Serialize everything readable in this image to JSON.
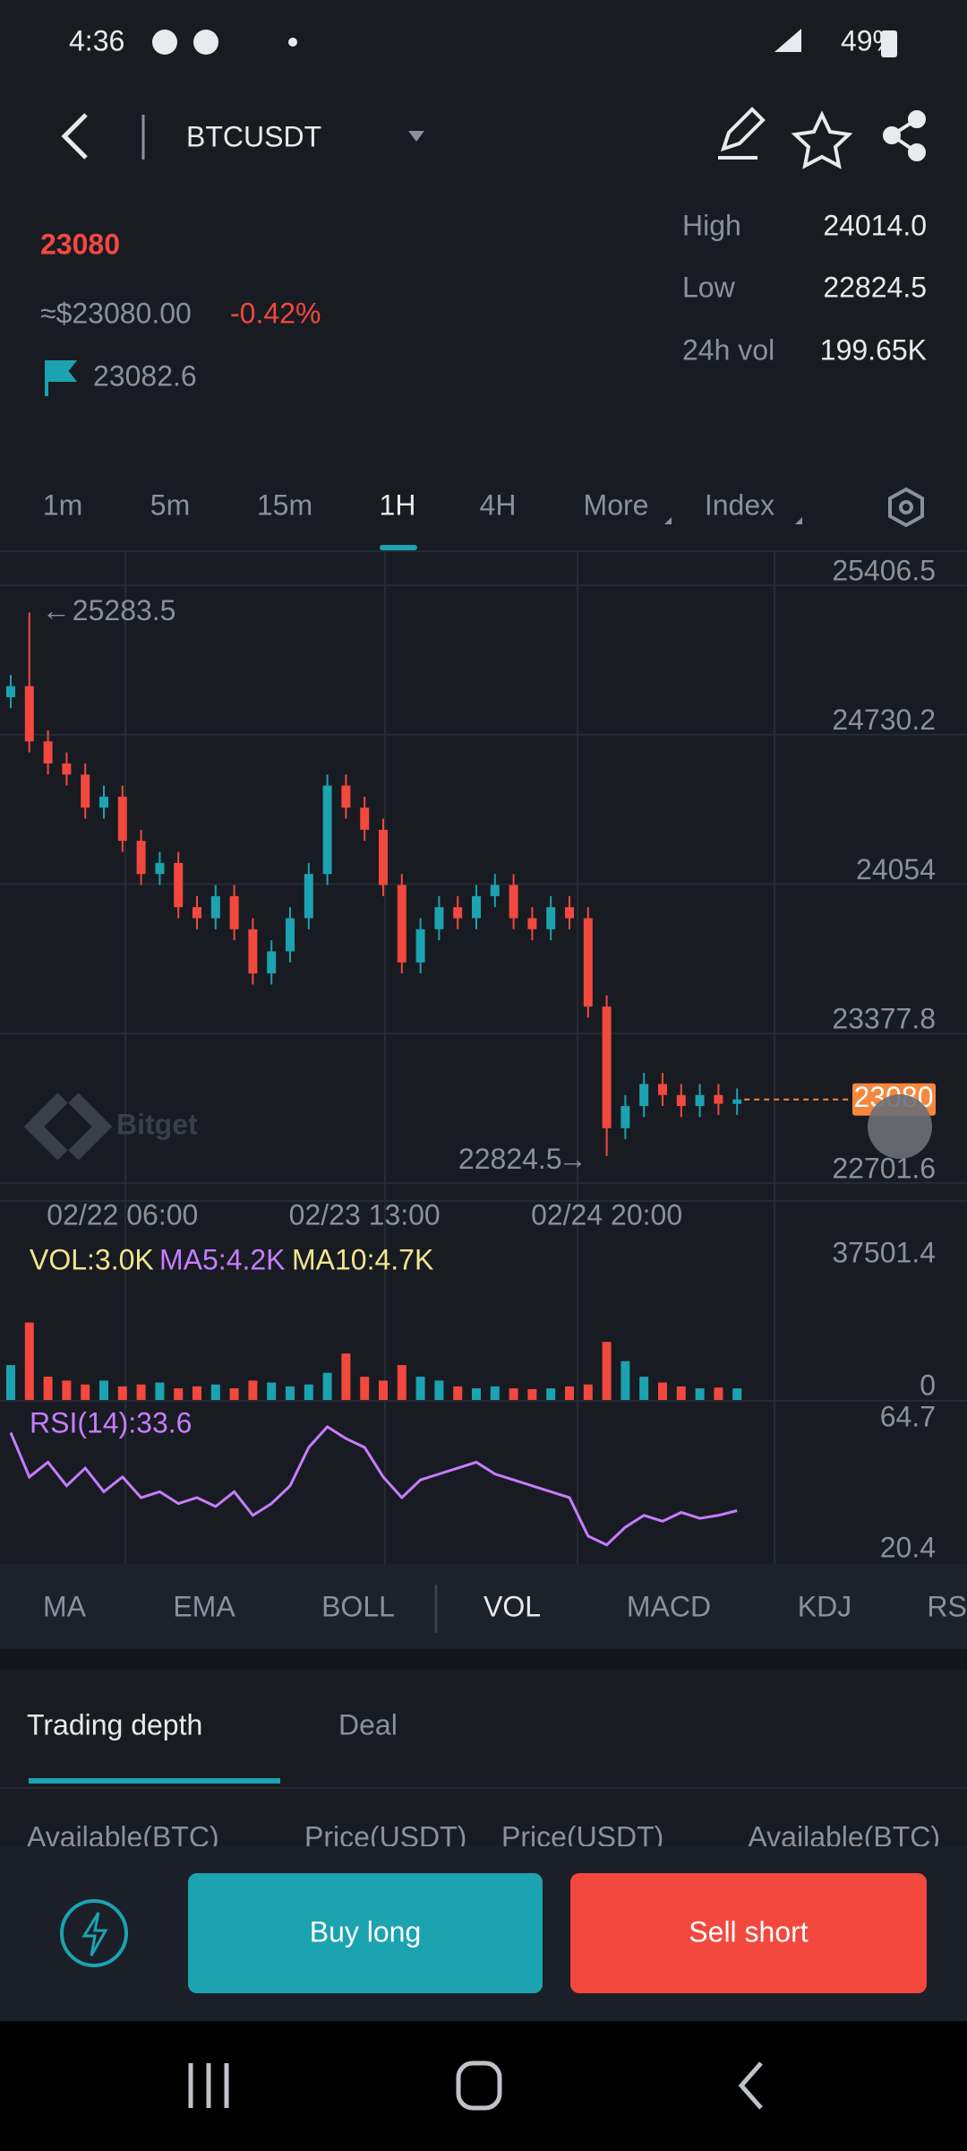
{
  "status_bar": {
    "time": "4:36",
    "battery": "49%"
  },
  "header": {
    "symbol": "BTCUSDT"
  },
  "ticker": {
    "price": "23080",
    "usd_price": "≈$23080.00",
    "change": "-0.42%",
    "mark_price": "23082.6",
    "stats": [
      {
        "label": "High",
        "value": "24014.0"
      },
      {
        "label": "Low",
        "value": "22824.5"
      },
      {
        "label": "24h vol",
        "value": "199.65K"
      }
    ]
  },
  "intervals": [
    "1m",
    "5m",
    "15m",
    "1H",
    "4H",
    "More",
    "Index"
  ],
  "chart_data": {
    "type": "candlestick",
    "watermark": "Bitget",
    "categories": [
      null,
      null,
      null,
      null,
      null,
      null,
      "02/22 06:00",
      null,
      null,
      null,
      null,
      null,
      null,
      null,
      null,
      null,
      null,
      null,
      null,
      "02/23 13:00",
      null,
      null,
      null,
      null,
      null,
      null,
      null,
      null,
      null,
      null,
      null,
      null,
      "02/24 20:00",
      null,
      null,
      null,
      null,
      null,
      null,
      null
    ],
    "open": [
      24900,
      24950,
      24700,
      24600,
      24550,
      24400,
      24450,
      24250,
      24100,
      24150,
      23950,
      23900,
      24000,
      23850,
      23650,
      23750,
      23900,
      24100,
      24500,
      24400,
      24300,
      24050,
      23700,
      23850,
      23950,
      23900,
      24000,
      24050,
      23900,
      23850,
      23950,
      23900,
      23500,
      22950,
      23050,
      23150,
      23100,
      23050,
      23100,
      23060
    ],
    "high": [
      25000,
      25283.5,
      24750,
      24650,
      24600,
      24500,
      24500,
      24300,
      24200,
      24200,
      24000,
      24050,
      24050,
      23900,
      23800,
      23950,
      24150,
      24550,
      24550,
      24450,
      24350,
      24100,
      23900,
      24000,
      24000,
      24050,
      24100,
      24100,
      23950,
      24000,
      24000,
      23950,
      23550,
      23100,
      23200,
      23200,
      23150,
      23150,
      23150,
      23130
    ],
    "low": [
      24850,
      24650,
      24550,
      24500,
      24350,
      24350,
      24200,
      24050,
      24050,
      23900,
      23850,
      23850,
      23800,
      23600,
      23600,
      23700,
      23850,
      24050,
      24350,
      24250,
      24000,
      23650,
      23650,
      23800,
      23850,
      23850,
      23950,
      23850,
      23800,
      23800,
      23850,
      23450,
      22824.5,
      22900,
      23000,
      23050,
      23000,
      23000,
      23010,
      23010
    ],
    "close": [
      24950,
      24700,
      24600,
      24550,
      24400,
      24450,
      24250,
      24100,
      24150,
      23950,
      23900,
      24000,
      23850,
      23650,
      23750,
      23900,
      24100,
      24500,
      24400,
      24300,
      24050,
      23700,
      23850,
      23950,
      23900,
      24000,
      24050,
      23900,
      23850,
      23950,
      23900,
      23500,
      22950,
      23050,
      23150,
      23100,
      23050,
      23100,
      23060,
      23080
    ],
    "up_color": "#1ba3b0",
    "down_color": "#f2483e",
    "ylim": [
      22701.6,
      25406.5
    ],
    "yticks": [
      25406.5,
      24730.2,
      24054,
      23377.8,
      22701.6
    ],
    "grid": true,
    "volume": {
      "labels": [
        "VOL:3.0K",
        "MA5:4.2K",
        "MA10:4.7K"
      ],
      "ylim": [
        0,
        37501.4
      ],
      "yticks": [
        37501.4,
        0
      ],
      "values": [
        9000,
        20000,
        6000,
        5000,
        4000,
        5000,
        3500,
        4000,
        4500,
        3000,
        3500,
        4000,
        3000,
        5000,
        4500,
        3500,
        4000,
        7000,
        12000,
        6000,
        5000,
        9000,
        6000,
        5000,
        3500,
        3000,
        3500,
        3000,
        2800,
        3000,
        3500,
        4000,
        15000,
        10000,
        6000,
        4500,
        3500,
        3000,
        3200,
        3000
      ]
    },
    "rsi": {
      "label": "RSI(14):33.6",
      "color": "#c77dff",
      "ylim": [
        20.4,
        64.7
      ],
      "yticks": [
        64.7,
        20.4
      ],
      "values": [
        60,
        45,
        50,
        42,
        48,
        40,
        45,
        38,
        40,
        36,
        38,
        35,
        40,
        32,
        36,
        42,
        55,
        62,
        58,
        55,
        45,
        38,
        44,
        46,
        48,
        50,
        46,
        44,
        42,
        40,
        38,
        25,
        22,
        28,
        32,
        30,
        33,
        31,
        32,
        33.6
      ]
    }
  },
  "indicator_tabs": [
    "MA",
    "EMA",
    "BOLL",
    "VOL",
    "MACD",
    "KDJ",
    "RSI"
  ],
  "depth_tabs": [
    "Trading depth",
    "Deal"
  ],
  "depth_columns": [
    "Available(BTC)",
    "Price(USDT)",
    "Price(USDT)",
    "Available(BTC)"
  ],
  "buttons": {
    "buy": "Buy long",
    "sell": "Sell short"
  }
}
